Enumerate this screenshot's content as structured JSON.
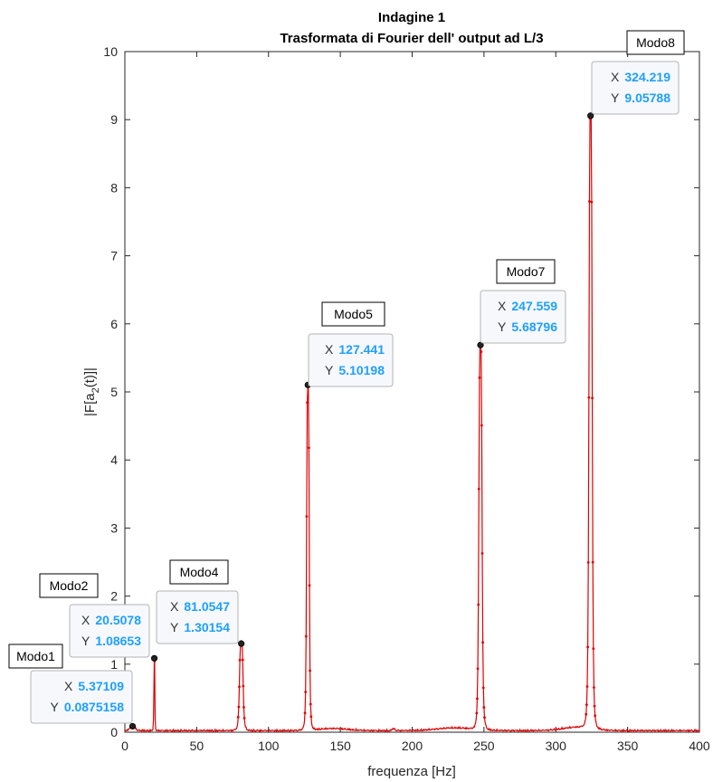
{
  "chart_data": {
    "type": "line",
    "title": "Indagine 1",
    "subtitle": "Trasformata di Fourier dell' output ad L/3",
    "xlabel": "frequenza [Hz]",
    "ylabel": "|F[a2(t)]|",
    "xlim": [
      0,
      400
    ],
    "ylim": [
      0,
      10
    ],
    "xticks": [
      "0",
      "50",
      "100",
      "150",
      "200",
      "250",
      "300",
      "350",
      "400"
    ],
    "yticks": [
      "0",
      "1",
      "2",
      "3",
      "4",
      "5",
      "6",
      "7",
      "8",
      "9",
      "10"
    ],
    "grid": false,
    "colors": {
      "line": "#e00000",
      "marker": "#222222",
      "datatip_value": "#1ea0ff"
    },
    "peaks": [
      {
        "x": 5.37109,
        "y": 0.0875158,
        "width": 2.5
      },
      {
        "x": 20.5078,
        "y": 1.08653,
        "width": 0.5
      },
      {
        "x": 81.0547,
        "y": 1.30154,
        "width": 1.8
      },
      {
        "x": 127.441,
        "y": 5.10198,
        "width": 1.3
      },
      {
        "x": 247.559,
        "y": 5.68796,
        "width": 1.6
      },
      {
        "x": 324.219,
        "y": 9.05788,
        "width": 1.6
      }
    ],
    "datatips": [
      {
        "mode": "Modo1",
        "x_label": "X",
        "y_label": "Y",
        "x": "5.37109",
        "y": "0.0875158"
      },
      {
        "mode": "Modo2",
        "x_label": "X",
        "y_label": "Y",
        "x": "20.5078",
        "y": "1.08653"
      },
      {
        "mode": "Modo4",
        "x_label": "X",
        "y_label": "Y",
        "x": "81.0547",
        "y": "1.30154"
      },
      {
        "mode": "Modo5",
        "x_label": "X",
        "y_label": "Y",
        "x": "127.441",
        "y": "5.10198"
      },
      {
        "mode": "Modo7",
        "x_label": "X",
        "y_label": "Y",
        "x": "247.559",
        "y": "5.68796"
      },
      {
        "mode": "Modo8",
        "x_label": "X",
        "y_label": "Y",
        "x": "324.219",
        "y": "9.05788"
      }
    ]
  }
}
